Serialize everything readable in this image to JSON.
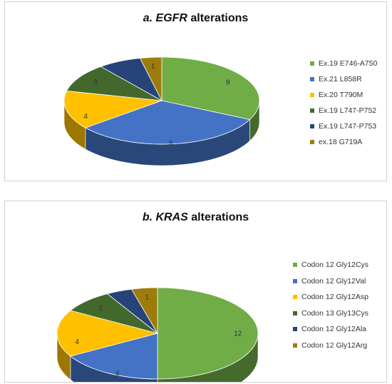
{
  "chart_data": [
    {
      "type": "pie",
      "title": {
        "prefix": "a. ",
        "gene": "EGFR",
        "suffix": " alterations"
      },
      "categories": [
        "Ex.19 E746-A750",
        "Ex.21 L858R",
        "Ex.20 T790M",
        "Ex.19 L747-P752",
        "Ex.19 L747-P753",
        "ex.18 G719A"
      ],
      "values": [
        9,
        9,
        4,
        3,
        2,
        1
      ],
      "data_labels": [
        "9",
        "9",
        "4",
        "3",
        "",
        "1"
      ],
      "colors": [
        "#70AD47",
        "#4472C4",
        "#FFC000",
        "#43682B",
        "#264478",
        "#9E7C0C"
      ],
      "legend_position": "right",
      "style": "3d"
    },
    {
      "type": "pie",
      "title": {
        "prefix": "b. ",
        "gene": "KRAS",
        "suffix": " alterations"
      },
      "categories": [
        "Codon 12 Gly12Cys",
        "Codon 12 Gly12Val",
        "Codon 12 Gly12Asp",
        "Codon 13 Gly13Cys",
        "Codon 12 Gly12Ala",
        "Codon 12 Gly12Arg"
      ],
      "values": [
        12,
        4,
        4,
        2,
        1,
        1
      ],
      "data_labels": [
        "12",
        "4",
        "4",
        "2",
        "",
        "1"
      ],
      "colors": [
        "#70AD47",
        "#4472C4",
        "#FFC000",
        "#43682B",
        "#264478",
        "#9E7C0C"
      ],
      "legend_position": "right",
      "style": "3d"
    }
  ]
}
